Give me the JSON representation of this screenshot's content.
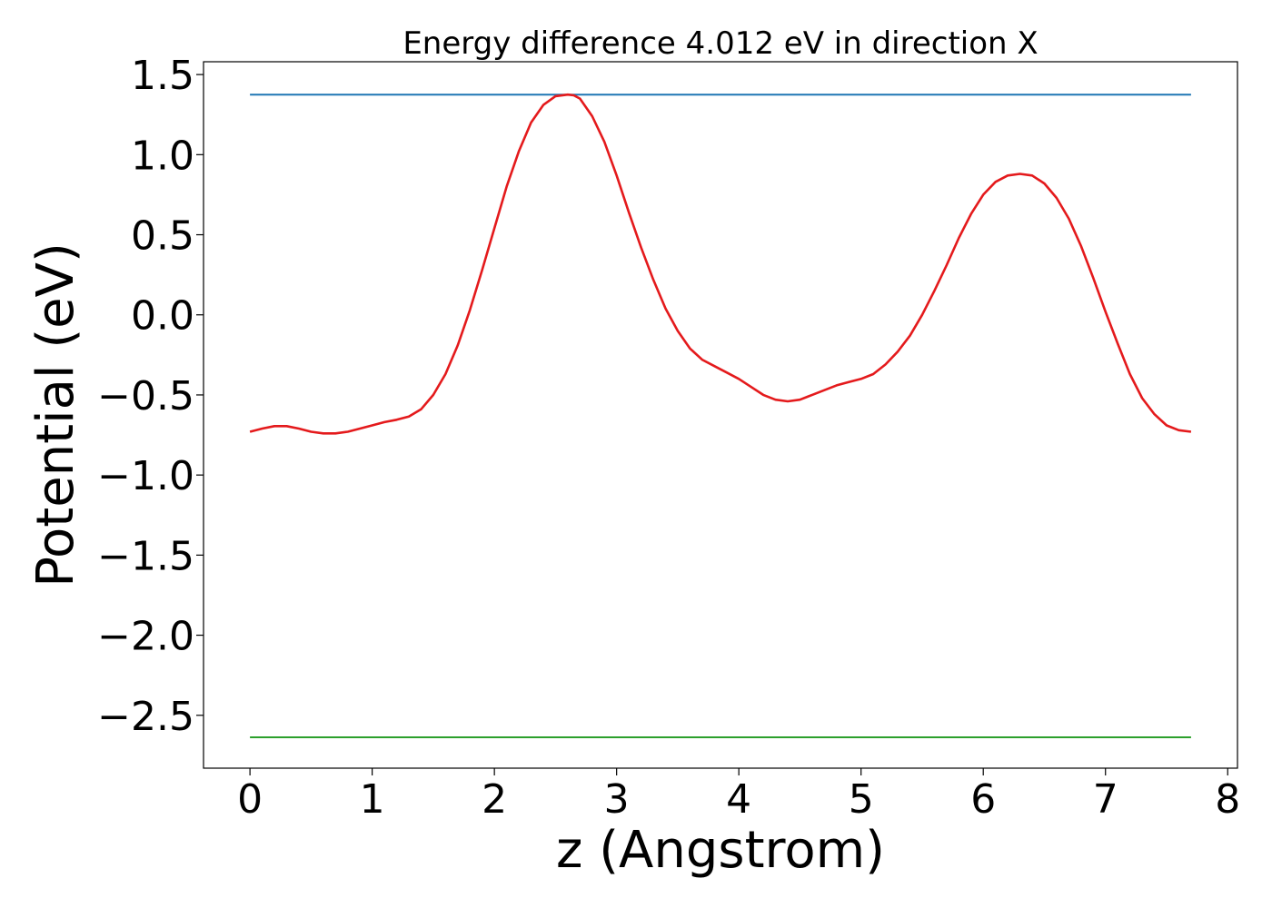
{
  "chart_data": {
    "type": "line",
    "title": "Energy difference 4.012 eV in direction X",
    "xlabel": "z (Angstrom)",
    "ylabel": "Potential (eV)",
    "xlim": [
      -0.38,
      8.08
    ],
    "ylim": [
      -2.83,
      1.58
    ],
    "xticks": [
      0,
      1,
      2,
      3,
      4,
      5,
      6,
      7,
      8
    ],
    "xtick_labels": [
      "0",
      "1",
      "2",
      "3",
      "4",
      "5",
      "6",
      "7",
      "8"
    ],
    "yticks": [
      1.5,
      1.0,
      0.5,
      0.0,
      -0.5,
      -1.0,
      -1.5,
      -2.0,
      -2.5
    ],
    "ytick_labels": [
      "1.5",
      "1.0",
      "0.5",
      "0.0",
      "−0.5",
      "−1.0",
      "−1.5",
      "−2.0",
      "−2.5"
    ],
    "grid": false,
    "series": [
      {
        "color": "#1f77b4",
        "x": [
          0,
          7.7
        ],
        "y": [
          1.375,
          1.375
        ]
      },
      {
        "color": "#2ca02c",
        "x": [
          0,
          7.7
        ],
        "y": [
          -2.637,
          -2.637
        ]
      },
      {
        "color": "#e41a1c",
        "x": [
          0,
          0.1,
          0.2,
          0.3,
          0.4,
          0.5,
          0.6,
          0.7,
          0.8,
          0.9,
          1.0,
          1.1,
          1.2,
          1.3,
          1.4,
          1.5,
          1.6,
          1.7,
          1.8,
          1.9,
          2.0,
          2.1,
          2.2,
          2.3,
          2.4,
          2.5,
          2.6,
          2.65,
          2.7,
          2.8,
          2.9,
          3.0,
          3.1,
          3.2,
          3.3,
          3.4,
          3.5,
          3.6,
          3.7,
          3.8,
          3.9,
          4.0,
          4.1,
          4.2,
          4.3,
          4.4,
          4.5,
          4.6,
          4.7,
          4.8,
          4.9,
          5.0,
          5.1,
          5.2,
          5.3,
          5.4,
          5.5,
          5.6,
          5.7,
          5.8,
          5.9,
          6.0,
          6.1,
          6.2,
          6.3,
          6.4,
          6.5,
          6.6,
          6.7,
          6.8,
          6.9,
          7.0,
          7.1,
          7.2,
          7.3,
          7.4,
          7.5,
          7.6,
          7.7
        ],
        "y": [
          -0.73,
          -0.71,
          -0.695,
          -0.695,
          -0.71,
          -0.73,
          -0.74,
          -0.74,
          -0.73,
          -0.71,
          -0.69,
          -0.67,
          -0.655,
          -0.635,
          -0.59,
          -0.5,
          -0.37,
          -0.19,
          0.03,
          0.28,
          0.54,
          0.8,
          1.02,
          1.2,
          1.31,
          1.365,
          1.375,
          1.37,
          1.35,
          1.24,
          1.08,
          0.87,
          0.64,
          0.42,
          0.22,
          0.04,
          -0.1,
          -0.21,
          -0.28,
          -0.32,
          -0.36,
          -0.4,
          -0.45,
          -0.5,
          -0.53,
          -0.54,
          -0.53,
          -0.5,
          -0.47,
          -0.44,
          -0.42,
          -0.4,
          -0.37,
          -0.31,
          -0.23,
          -0.13,
          0.0,
          0.15,
          0.31,
          0.48,
          0.63,
          0.75,
          0.83,
          0.87,
          0.88,
          0.87,
          0.82,
          0.73,
          0.6,
          0.43,
          0.23,
          0.02,
          -0.18,
          -0.37,
          -0.52,
          -0.62,
          -0.69,
          -0.72,
          -0.73
        ]
      }
    ]
  }
}
